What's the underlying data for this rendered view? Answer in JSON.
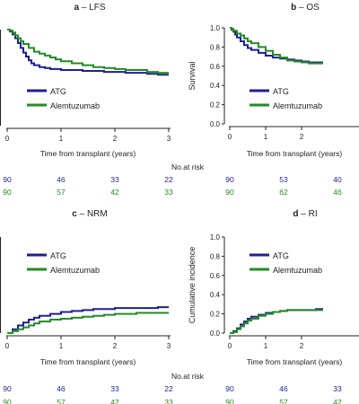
{
  "chart_data": [
    {
      "type": "line",
      "panel_letter": "a",
      "title": " – LFS",
      "xlabel": "Time from transplant (years)",
      "ylabel": "",
      "xlim": [
        0,
        3
      ],
      "ylim": [
        0,
        1
      ],
      "x_ticks": [
        "0",
        "1",
        "2",
        "3"
      ],
      "y_ticks": [],
      "legend": "center-left",
      "series": [
        {
          "name": "ATG",
          "color": "#1f1f96",
          "x": [
            0,
            0.05,
            0.1,
            0.15,
            0.2,
            0.25,
            0.3,
            0.35,
            0.4,
            0.45,
            0.5,
            0.6,
            0.7,
            0.8,
            0.9,
            1.0,
            1.2,
            1.4,
            1.6,
            1.8,
            2.0,
            2.2,
            2.4,
            2.6,
            2.8,
            3.0
          ],
          "y": [
            1.0,
            0.98,
            0.95,
            0.91,
            0.86,
            0.81,
            0.76,
            0.72,
            0.68,
            0.65,
            0.63,
            0.61,
            0.6,
            0.59,
            0.59,
            0.58,
            0.58,
            0.57,
            0.57,
            0.56,
            0.56,
            0.55,
            0.55,
            0.54,
            0.53,
            0.53
          ]
        },
        {
          "name": "Alemtuzumab",
          "color": "#238c23",
          "x": [
            0,
            0.05,
            0.1,
            0.15,
            0.2,
            0.25,
            0.3,
            0.4,
            0.5,
            0.6,
            0.7,
            0.8,
            0.9,
            1.0,
            1.2,
            1.4,
            1.6,
            1.8,
            2.0,
            2.2,
            2.4,
            2.6,
            2.8,
            3.0
          ],
          "y": [
            1.0,
            0.99,
            0.97,
            0.94,
            0.91,
            0.88,
            0.85,
            0.81,
            0.77,
            0.75,
            0.73,
            0.71,
            0.69,
            0.67,
            0.65,
            0.63,
            0.61,
            0.6,
            0.59,
            0.58,
            0.58,
            0.56,
            0.55,
            0.55
          ]
        }
      ],
      "at_risk": {
        "ATG": [
          "90",
          "46",
          "33",
          "22"
        ],
        "Alemtuzumab": [
          "90",
          "57",
          "42",
          "33"
        ]
      }
    },
    {
      "type": "line",
      "panel_letter": "b",
      "title": " – OS",
      "xlabel": "Time from transplant (years)",
      "ylabel": "Survival",
      "xlim": [
        0,
        3
      ],
      "ylim": [
        0,
        1
      ],
      "x_ticks": [
        "0",
        "1",
        "2"
      ],
      "y_ticks": [
        "0.0",
        "0.2",
        "0.4",
        "0.6",
        "0.8",
        "1.0"
      ],
      "legend": "center-left",
      "series": [
        {
          "name": "ATG",
          "color": "#1f1f96",
          "x": [
            0,
            0.05,
            0.1,
            0.15,
            0.2,
            0.3,
            0.4,
            0.5,
            0.6,
            0.8,
            1.0,
            1.2,
            1.4,
            1.6,
            1.8,
            2.0,
            2.2,
            2.4,
            2.6
          ],
          "y": [
            1.0,
            0.98,
            0.96,
            0.93,
            0.9,
            0.86,
            0.82,
            0.79,
            0.77,
            0.74,
            0.71,
            0.69,
            0.68,
            0.67,
            0.66,
            0.65,
            0.64,
            0.64,
            0.64
          ]
        },
        {
          "name": "Alemtuzumab",
          "color": "#238c23",
          "x": [
            0,
            0.05,
            0.1,
            0.2,
            0.3,
            0.4,
            0.5,
            0.6,
            0.8,
            1.0,
            1.2,
            1.4,
            1.6,
            1.8,
            2.0,
            2.2,
            2.4,
            2.6
          ],
          "y": [
            1.0,
            0.99,
            0.97,
            0.94,
            0.92,
            0.89,
            0.86,
            0.84,
            0.8,
            0.76,
            0.72,
            0.69,
            0.66,
            0.65,
            0.64,
            0.63,
            0.63,
            0.63
          ]
        }
      ],
      "at_risk": {
        "ATG": [
          "90",
          "53",
          "40"
        ],
        "Alemtuzumab": [
          "90",
          "62",
          "46"
        ]
      }
    },
    {
      "type": "line",
      "panel_letter": "c",
      "title": " – NRM",
      "xlabel": "Time from transplant (years)",
      "ylabel": "",
      "xlim": [
        0,
        3
      ],
      "ylim": [
        0,
        1
      ],
      "x_ticks": [
        "0",
        "1",
        "2",
        "3"
      ],
      "y_ticks": [],
      "legend": "top-left",
      "series": [
        {
          "name": "ATG",
          "color": "#1f1f96",
          "x": [
            0,
            0.1,
            0.2,
            0.3,
            0.4,
            0.5,
            0.6,
            0.8,
            1.0,
            1.2,
            1.4,
            1.6,
            1.8,
            2.0,
            2.4,
            2.8,
            3.0
          ],
          "y": [
            0.0,
            0.04,
            0.08,
            0.11,
            0.14,
            0.16,
            0.18,
            0.2,
            0.22,
            0.23,
            0.24,
            0.25,
            0.25,
            0.26,
            0.26,
            0.27,
            0.27
          ]
        },
        {
          "name": "Alemtuzumab",
          "color": "#238c23",
          "x": [
            0,
            0.1,
            0.2,
            0.3,
            0.4,
            0.5,
            0.6,
            0.8,
            1.0,
            1.2,
            1.4,
            1.6,
            1.8,
            2.0,
            2.4,
            2.8,
            3.0
          ],
          "y": [
            0.0,
            0.02,
            0.04,
            0.06,
            0.08,
            0.1,
            0.12,
            0.14,
            0.15,
            0.16,
            0.17,
            0.18,
            0.19,
            0.2,
            0.21,
            0.21,
            0.21
          ]
        }
      ],
      "at_risk": {
        "ATG": [
          "90",
          "46",
          "33",
          "22"
        ],
        "Alemtuzumab": [
          "90",
          "57",
          "42",
          "33"
        ]
      }
    },
    {
      "type": "line",
      "panel_letter": "d",
      "title": " – RI",
      "xlabel": "Time from transplant (years)",
      "ylabel": "Cumulative incidence",
      "xlim": [
        0,
        3
      ],
      "ylim": [
        0,
        1
      ],
      "x_ticks": [
        "0",
        "1",
        "2"
      ],
      "y_ticks": [
        "0.0",
        "0.2",
        "0.4",
        "0.6",
        "0.8",
        "1.0"
      ],
      "legend": "top-left",
      "series": [
        {
          "name": "ATG",
          "color": "#1f1f96",
          "x": [
            0,
            0.1,
            0.2,
            0.3,
            0.4,
            0.5,
            0.6,
            0.8,
            1.0,
            1.2,
            1.4,
            1.6,
            2.0,
            2.4,
            2.6
          ],
          "y": [
            0.0,
            0.02,
            0.05,
            0.09,
            0.12,
            0.15,
            0.17,
            0.19,
            0.21,
            0.22,
            0.23,
            0.24,
            0.24,
            0.25,
            0.25
          ]
        },
        {
          "name": "Alemtuzumab",
          "color": "#238c23",
          "x": [
            0,
            0.1,
            0.2,
            0.3,
            0.4,
            0.5,
            0.6,
            0.8,
            1.0,
            1.2,
            1.4,
            1.6,
            2.0,
            2.4,
            2.6
          ],
          "y": [
            0.0,
            0.01,
            0.04,
            0.07,
            0.1,
            0.13,
            0.15,
            0.18,
            0.2,
            0.22,
            0.23,
            0.24,
            0.24,
            0.24,
            0.24
          ]
        }
      ],
      "at_risk": {
        "ATG": [
          "90",
          "46",
          "33"
        ],
        "Alemtuzumab": [
          "90",
          "57",
          "42"
        ]
      }
    }
  ],
  "risk_label": "No.at risk"
}
